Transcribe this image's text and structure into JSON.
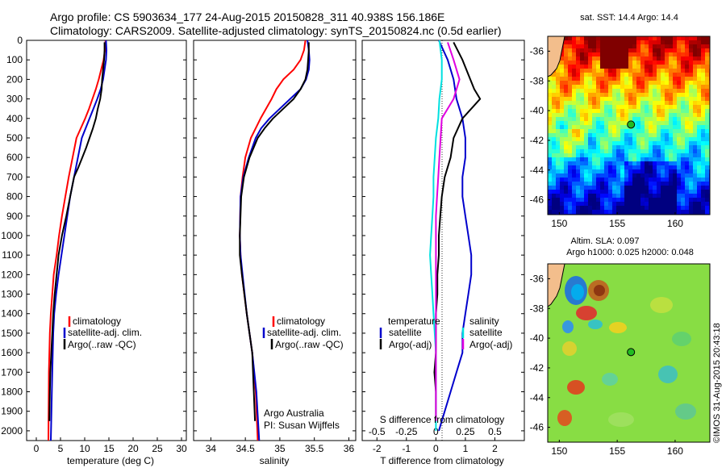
{
  "header": {
    "line1": "Argo profile: CS 5903634_177 24-Aug-2015 20150828_311 40.938S 156.186E",
    "line2": "Climatology: CARS2009. Satellite-adjusted climatology: synTS_20150824.nc (0.5d earlier)"
  },
  "colors": {
    "climatology": "#ff0000",
    "satellite": "#0000cc",
    "argo": "#000000",
    "s_satellite": "#00e0e0",
    "s_argo": "#e000e0"
  },
  "chart_data": [
    {
      "type": "line",
      "xlabel": "temperature (deg C)",
      "ylabel": "",
      "xlim": [
        -2,
        31
      ],
      "ylim": [
        2050,
        0
      ],
      "xticks": [
        0,
        5,
        10,
        15,
        20,
        25,
        30
      ],
      "yticks": [
        0,
        100,
        200,
        300,
        400,
        500,
        600,
        700,
        800,
        900,
        1000,
        1100,
        1200,
        1300,
        1400,
        1500,
        1600,
        1700,
        1800,
        1900,
        2000
      ],
      "legend": [
        "climatology",
        "satellite-adj. clim.",
        "Argo(..raw -QC)"
      ],
      "legend_position": "lower-center",
      "series": [
        {
          "name": "climatology",
          "color_key": "climatology",
          "x": [
            14.3,
            14.2,
            13.9,
            13.4,
            12.9,
            12.3,
            11.6,
            10.9,
            10.1,
            9.2,
            8.3,
            7.5,
            6.7,
            6.0,
            5.3,
            4.7,
            4.2,
            3.6,
            3.3,
            3.0,
            2.8,
            2.6,
            2.5
          ],
          "y": [
            0,
            50,
            100,
            150,
            200,
            250,
            300,
            350,
            400,
            450,
            500,
            600,
            700,
            800,
            900,
            1000,
            1100,
            1200,
            1300,
            1400,
            1500,
            1700,
            2050
          ]
        },
        {
          "name": "satellite-adj. clim.",
          "color_key": "satellite",
          "x": [
            14.4,
            14.5,
            14.4,
            14.1,
            13.8,
            13.3,
            12.6,
            11.8,
            11.0,
            10.2,
            9.4,
            8.6,
            7.8,
            7.0,
            6.4,
            5.8,
            5.2,
            4.6,
            4.1,
            3.7,
            3.5,
            3.3,
            3.0
          ],
          "y": [
            0,
            50,
            100,
            150,
            200,
            250,
            300,
            350,
            400,
            450,
            500,
            600,
            700,
            800,
            900,
            1000,
            1100,
            1200,
            1300,
            1400,
            1500,
            1700,
            2050
          ]
        },
        {
          "name": "Argo(..raw -QC)",
          "color_key": "argo",
          "x": [
            14.1,
            14.1,
            14.0,
            13.8,
            13.6,
            13.5,
            13.2,
            12.7,
            12.3,
            11.7,
            11.0,
            10.3,
            9.5,
            8.7,
            7.8,
            7.0,
            6.2,
            5.3,
            4.6,
            4.2,
            3.8,
            3.5,
            3.3,
            3.1,
            2.9,
            2.8,
            2.7
          ],
          "y": [
            10,
            50,
            100,
            150,
            200,
            250,
            300,
            350,
            400,
            450,
            500,
            550,
            600,
            650,
            700,
            800,
            900,
            1000,
            1100,
            1200,
            1300,
            1400,
            1500,
            1600,
            1700,
            1800,
            1950
          ]
        }
      ]
    },
    {
      "type": "line",
      "xlabel": "salinity",
      "ylabel": "",
      "xlim": [
        33.75,
        36.1
      ],
      "ylim": [
        2050,
        0
      ],
      "xticks": [
        34,
        34.5,
        35,
        35.5,
        36
      ],
      "legend": [
        "climatology",
        "satellite-adj. clim.",
        "Argo(..raw -QC)"
      ],
      "legend_position": "lower-center",
      "annotation": [
        "Argo Australia",
        "PI: Susan Wijffels"
      ],
      "series": [
        {
          "name": "climatology",
          "color_key": "climatology",
          "x": [
            35.37,
            35.35,
            35.3,
            35.2,
            35.05,
            34.95,
            34.88,
            34.8,
            34.72,
            34.65,
            34.58,
            34.5,
            34.46,
            34.43,
            34.42,
            34.43,
            34.45,
            34.52,
            34.6,
            34.65,
            34.68
          ],
          "y": [
            0,
            50,
            100,
            150,
            200,
            250,
            300,
            350,
            400,
            450,
            500,
            600,
            700,
            800,
            1000,
            1100,
            1200,
            1400,
            1600,
            1800,
            2050
          ]
        },
        {
          "name": "satellite-adj. clim.",
          "color_key": "satellite",
          "x": [
            35.4,
            35.42,
            35.43,
            35.42,
            35.38,
            35.3,
            35.15,
            35.0,
            34.85,
            34.73,
            34.65,
            34.55,
            34.47,
            34.43,
            34.42,
            34.43,
            34.46,
            34.52,
            34.6,
            34.66,
            34.7
          ],
          "y": [
            0,
            50,
            100,
            150,
            200,
            250,
            300,
            350,
            400,
            450,
            500,
            600,
            700,
            800,
            1000,
            1100,
            1200,
            1400,
            1600,
            1800,
            2050
          ]
        },
        {
          "name": "Argo(..raw -QC)",
          "color_key": "argo",
          "x": [
            35.42,
            35.42,
            35.41,
            35.4,
            35.37,
            35.3,
            35.2,
            35.05,
            34.9,
            34.78,
            34.68,
            34.56,
            34.48,
            34.44,
            34.42,
            34.42,
            34.45,
            34.52,
            34.6,
            34.64
          ],
          "y": [
            10,
            50,
            100,
            150,
            200,
            250,
            300,
            350,
            400,
            450,
            500,
            600,
            700,
            800,
            1000,
            1100,
            1200,
            1400,
            1600,
            1950
          ]
        }
      ]
    },
    {
      "type": "line",
      "xlabel": "T difference from climatology",
      "xlabel_top": "S difference from climatology",
      "xlim": [
        -2.5,
        3.0
      ],
      "xlim_salinity": [
        -0.625,
        0.75
      ],
      "ylim": [
        2050,
        0
      ],
      "xticks": [
        -2,
        -1,
        0,
        1,
        2
      ],
      "xticks_salinity": [
        "-0.5",
        "-0.25",
        "0",
        "0.25",
        "0.5"
      ],
      "legend_groups": [
        {
          "title": "temperature",
          "entries": [
            "satellite",
            "Argo(-adj)"
          ]
        },
        {
          "title": "salinity",
          "entries": [
            "satellite",
            "Argo(-adj)"
          ]
        }
      ],
      "series": [
        {
          "name": "temperature satellite",
          "color_key": "satellite",
          "x": [
            0.1,
            0.4,
            0.6,
            0.7,
            0.9,
            1.0,
            1.0,
            0.9,
            0.9,
            1.0,
            1.1,
            1.2,
            1.2,
            1.1,
            1.0,
            0.9,
            0.9,
            0.7,
            0.5,
            0.3,
            0.1
          ],
          "y": [
            0,
            100,
            200,
            300,
            400,
            500,
            600,
            700,
            800,
            900,
            1000,
            1100,
            1200,
            1300,
            1400,
            1500,
            1600,
            1700,
            1800,
            1900,
            2000
          ]
        },
        {
          "name": "temperature Argo(-adj)",
          "color_key": "argo",
          "x": [
            0.6,
            0.9,
            1.3,
            1.5,
            0.9,
            0.6,
            0.5,
            0.3,
            0.2,
            0.15,
            0.1,
            0.1,
            0.05,
            0.05,
            0.0,
            0.0,
            0.0,
            -0.05,
            0.0,
            0.0
          ],
          "y": [
            10,
            100,
            250,
            300,
            400,
            500,
            600,
            700,
            800,
            900,
            1000,
            1100,
            1200,
            1300,
            1400,
            1500,
            1600,
            1700,
            1800,
            1950
          ]
        },
        {
          "name": "salinity satellite",
          "color_key": "s_satellite",
          "x": [
            0.03,
            0.05,
            0.05,
            0.03,
            0.02,
            0.0,
            -0.01,
            -0.02,
            -0.02,
            -0.03,
            -0.04,
            -0.05,
            -0.04,
            -0.03,
            -0.02,
            -0.01,
            0.0,
            0.0,
            0.0,
            0.0,
            0.0
          ],
          "y": [
            0,
            100,
            200,
            300,
            400,
            500,
            600,
            700,
            800,
            900,
            1000,
            1100,
            1200,
            1300,
            1400,
            1500,
            1600,
            1700,
            1800,
            1900,
            2000
          ]
        },
        {
          "name": "salinity Argo(-adj)",
          "color_key": "s_argo",
          "x": [
            0.1,
            0.15,
            0.2,
            0.15,
            0.05,
            0.04,
            0.03,
            0.02,
            0.01,
            0.0,
            0.0,
            0.0,
            0.0,
            0.0,
            0.0,
            0.0,
            0.0,
            0.0,
            0.0,
            0.0
          ],
          "y": [
            10,
            100,
            200,
            300,
            400,
            500,
            600,
            700,
            800,
            900,
            1000,
            1100,
            1200,
            1300,
            1400,
            1500,
            1600,
            1700,
            1800,
            1950
          ]
        }
      ]
    },
    {
      "type": "heatmap",
      "title": "sat. SST: 14.4  Argo: 14.4",
      "xticks": [
        "150",
        "155",
        "160"
      ],
      "yticks": [
        "-36",
        "-38",
        "-40",
        "-42",
        "-44",
        "-46"
      ],
      "xlim": [
        149,
        163
      ],
      "ylim": [
        -47,
        -35
      ],
      "argo_position": [
        156.186,
        -40.938
      ]
    },
    {
      "type": "heatmap",
      "title_lines": [
        "Altim. SLA: 0.097",
        "Argo h1000: 0.025  h2000: 0.048"
      ],
      "xticks": [
        "150",
        "155",
        "160"
      ],
      "yticks": [
        "-36",
        "-38",
        "-40",
        "-42",
        "-44",
        "-46"
      ],
      "xlim": [
        149,
        163
      ],
      "ylim": [
        -47,
        -35
      ],
      "argo_position": [
        156.186,
        -40.938
      ]
    }
  ],
  "ylabels": [
    "0",
    "100",
    "200",
    "300",
    "400",
    "500",
    "600",
    "700",
    "800",
    "900",
    "1000",
    "1100",
    "1200",
    "1300",
    "1400",
    "1500",
    "1600",
    "1700",
    "1800",
    "1900",
    "2000"
  ],
  "credit": "©IMOS 31-Aug-2015 20:43:18"
}
